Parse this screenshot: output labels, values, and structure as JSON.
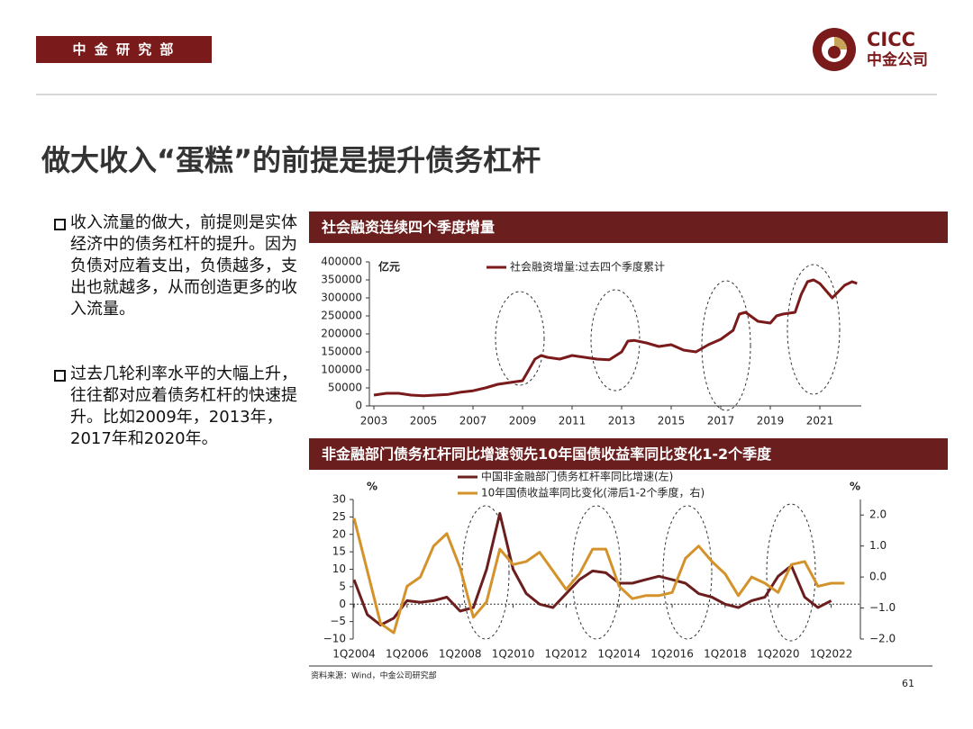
{
  "header": {
    "department": "中 金 研 究 部",
    "logo_en": "CICC",
    "logo_cn": "中金公司"
  },
  "title": "做大收入“蛋糕”的前提是提升债务杠杆",
  "bullets": [
    "收入流量的做大，前提则是实体经济中的债务杠杆的提升。因为负债对应着支出，负债越多，支出也就越多，从而创造更多的收入流量。",
    "过去几轮利率水平的大幅上升，往往都对应着债务杠杆的快速提升。比如2009年，2013年，2017年和2020年。"
  ],
  "footer": {
    "source": "资料来源：Wind，中金公司研究部",
    "page": "61"
  },
  "chart_data": [
    {
      "type": "line",
      "title": "社会融资连续四个季度增量",
      "y_unit": "亿元",
      "x": [
        2003,
        2003.5,
        2004,
        2004.5,
        2005,
        2005.5,
        2006,
        2006.5,
        2007,
        2007.5,
        2008,
        2008.5,
        2009,
        2009.25,
        2009.5,
        2009.75,
        2010,
        2010.5,
        2011,
        2011.5,
        2012,
        2012.5,
        2013,
        2013.25,
        2013.5,
        2014,
        2014.5,
        2015,
        2015.5,
        2016,
        2016.5,
        2017,
        2017.5,
        2017.75,
        2018,
        2018.5,
        2019,
        2019.25,
        2019.5,
        2020,
        2020.25,
        2020.5,
        2020.75,
        2021,
        2021.5,
        2022,
        2022.3,
        2022.5
      ],
      "series": [
        {
          "name": "社会融资增量:过去四个季度累计",
          "color": "#7a1a1a",
          "values": [
            30000,
            35000,
            35000,
            30000,
            28000,
            30000,
            32000,
            38000,
            42000,
            50000,
            60000,
            65000,
            70000,
            100000,
            130000,
            140000,
            135000,
            130000,
            140000,
            135000,
            130000,
            128000,
            150000,
            180000,
            182000,
            175000,
            165000,
            170000,
            155000,
            150000,
            170000,
            185000,
            210000,
            255000,
            260000,
            235000,
            230000,
            250000,
            255000,
            260000,
            310000,
            345000,
            350000,
            340000,
            300000,
            335000,
            345000,
            340000
          ]
        }
      ],
      "xlim": [
        2003,
        2022.6
      ],
      "xticks": [
        2003,
        2005,
        2007,
        2009,
        2011,
        2013,
        2015,
        2017,
        2019,
        2021
      ],
      "ylim": [
        0,
        400000
      ],
      "yticks": [
        0,
        50000,
        100000,
        150000,
        200000,
        250000,
        300000,
        350000,
        400000
      ]
    },
    {
      "type": "line",
      "title": "非金融部门债务杠杆同比增速领先10年国债收益率同比变化1-2个季度",
      "y_unit": "%",
      "y2_unit": "%",
      "x": [
        2004,
        2004.5,
        2005,
        2005.5,
        2006,
        2006.5,
        2007,
        2007.5,
        2008,
        2008.5,
        2009,
        2009.5,
        2010,
        2010.5,
        2011,
        2011.5,
        2012,
        2012.5,
        2013,
        2013.5,
        2014,
        2014.5,
        2015,
        2015.5,
        2016,
        2016.5,
        2017,
        2017.5,
        2018,
        2018.5,
        2019,
        2019.5,
        2020,
        2020.5,
        2021,
        2021.5,
        2022,
        2022.5
      ],
      "series": [
        {
          "name": "中国非金融部门债务杠杆率同比增速(左)",
          "color": "#6b1e1e",
          "values": [
            7,
            -3,
            -6,
            -4,
            1,
            0.5,
            1,
            2,
            -2,
            -1,
            10,
            26,
            10,
            3,
            0,
            -1,
            3,
            7,
            9.5,
            9,
            6,
            6,
            7,
            8,
            7,
            6,
            3,
            2,
            0,
            -1,
            1,
            2,
            8,
            11,
            2,
            -1,
            1,
            null
          ]
        },
        {
          "name": "10年国债收益率同比变化(滞后1-2个季度，右)",
          "color": "#d4922a",
          "axis": "y2",
          "values": [
            1.9,
            0.2,
            -1.5,
            -1.8,
            -0.3,
            0,
            1.0,
            1.4,
            0.3,
            -1.3,
            -0.8,
            0.9,
            0.4,
            0.5,
            0.8,
            0.2,
            -0.4,
            0.1,
            0.9,
            0.9,
            -0.3,
            -0.7,
            -0.6,
            -0.6,
            -0.5,
            0.6,
            1.0,
            0.5,
            0.1,
            -0.6,
            0,
            -0.2,
            -0.5,
            0.4,
            0.5,
            -0.3,
            -0.2,
            -0.2
          ]
        }
      ],
      "xlim": [
        2004,
        2023
      ],
      "xticks": [
        {
          "value": 2004,
          "label": "1Q2004"
        },
        {
          "value": 2006,
          "label": "1Q2006"
        },
        {
          "value": 2008,
          "label": "1Q2008"
        },
        {
          "value": 2010,
          "label": "1Q2010"
        },
        {
          "value": 2012,
          "label": "1Q2012"
        },
        {
          "value": 2014,
          "label": "1Q2014"
        },
        {
          "value": 2016,
          "label": "1Q2016"
        },
        {
          "value": 2018,
          "label": "1Q2018"
        },
        {
          "value": 2020,
          "label": "1Q2020"
        },
        {
          "value": 2022,
          "label": "1Q2022"
        }
      ],
      "ylim": [
        -10,
        30
      ],
      "yticks": [
        {
          "value": -10,
          "label": "−10"
        },
        {
          "value": -5,
          "label": "−5"
        },
        0,
        5,
        10,
        15,
        20,
        25,
        30
      ],
      "y2lim": [
        -2,
        2.5
      ],
      "y2ticks": [
        {
          "value": -2,
          "label": "−2.0"
        },
        {
          "value": -1,
          "label": "−1.0"
        },
        {
          "value": 0,
          "label": "0.0"
        },
        {
          "value": 1,
          "label": "1.0"
        },
        {
          "value": 2,
          "label": "2.0"
        }
      ]
    }
  ]
}
